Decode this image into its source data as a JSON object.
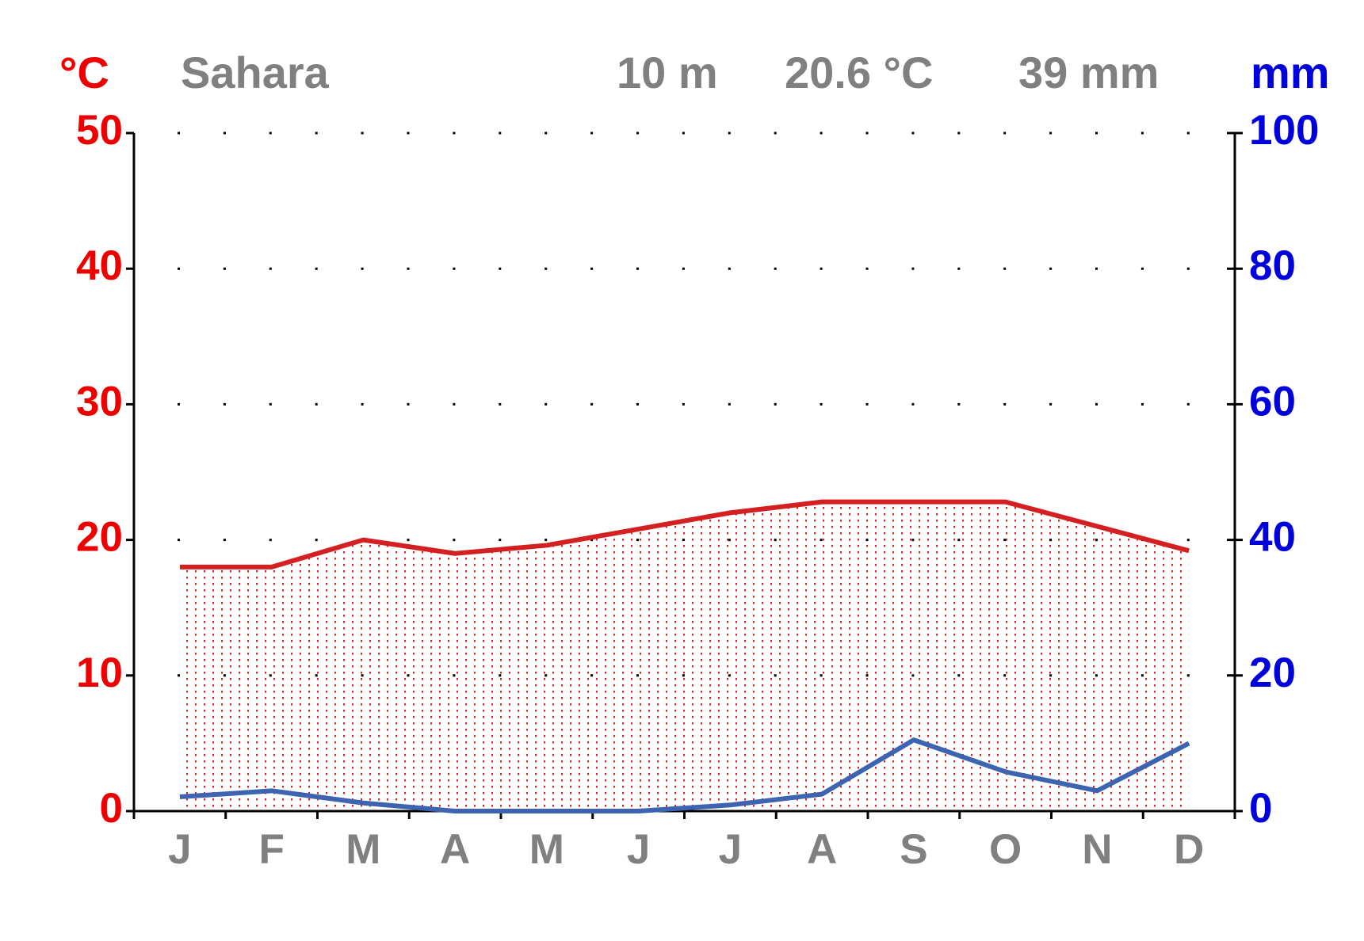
{
  "chart_data": {
    "type": "climate",
    "title": "Sahara",
    "elevation": "10 m",
    "mean_temperature": "20.6 °C",
    "annual_precipitation": "39 mm",
    "y_label": "°C",
    "y2_label": "mm",
    "categories": [
      "J",
      "F",
      "M",
      "A",
      "M",
      "J",
      "J",
      "A",
      "S",
      "O",
      "N",
      "D"
    ],
    "series": [
      {
        "name": "Temperature",
        "color": "#d42020",
        "values": [
          18,
          18,
          20,
          19,
          19.6,
          20.8,
          22,
          22.8,
          22.8,
          22.8,
          21,
          19.2
        ]
      },
      {
        "name": "Precipitation",
        "color": "#3d64b0",
        "axis": "y2",
        "values": [
          2.1,
          3,
          1.2,
          0,
          0,
          0,
          0.9,
          2.5,
          10.5,
          5.8,
          3,
          10
        ]
      }
    ],
    "ylim": [
      0,
      50
    ],
    "yticks": [
      0,
      10,
      20,
      30,
      40,
      50
    ],
    "y_color": "#ee0000",
    "y2lim": [
      0,
      100
    ],
    "y2ticks": [
      0,
      20,
      40,
      60,
      80,
      100
    ],
    "y2_color": "#0000dd",
    "grid": true
  }
}
